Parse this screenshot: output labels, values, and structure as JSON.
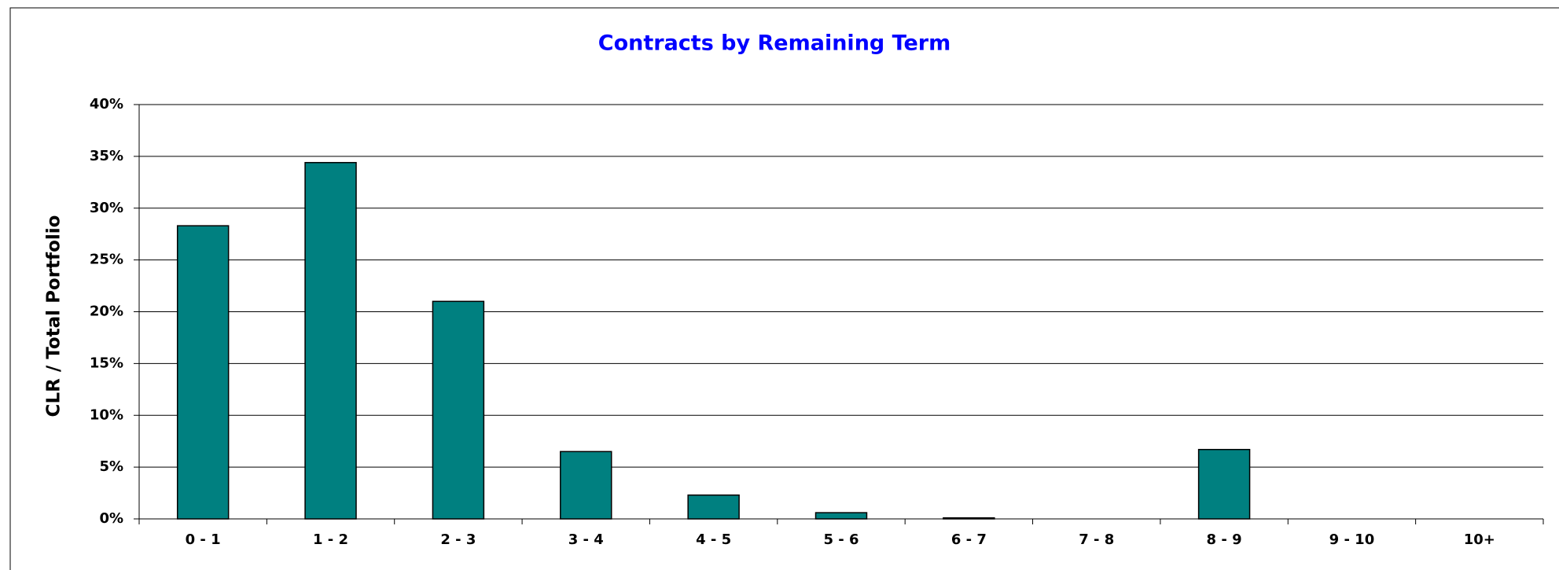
{
  "chart_data": {
    "type": "bar",
    "title": "Contracts by Remaining Term",
    "y_label": "CLR / Total Portfolio",
    "categories": [
      "0 - 1",
      "1 - 2",
      "2 - 3",
      "3 - 4",
      "4 - 5",
      "5 - 6",
      "6 - 7",
      "7 - 8",
      "8 - 9",
      "9 - 10",
      "10+"
    ],
    "values": [
      28.3,
      34.4,
      21.0,
      6.5,
      2.3,
      0.6,
      0.1,
      0,
      6.7,
      0,
      0
    ],
    "color": "#008080",
    "ylim": [
      0,
      40
    ],
    "yticks": [
      {
        "value": 0,
        "label": "0%"
      },
      {
        "value": 5,
        "label": "5%"
      },
      {
        "value": 10,
        "label": "10%"
      },
      {
        "value": 15,
        "label": "15%"
      },
      {
        "value": 20,
        "label": "20%"
      },
      {
        "value": 25,
        "label": "25%"
      },
      {
        "value": 30,
        "label": "30%"
      },
      {
        "value": 35,
        "label": "35%"
      },
      {
        "value": 40,
        "label": "40%"
      }
    ],
    "grid": true
  }
}
